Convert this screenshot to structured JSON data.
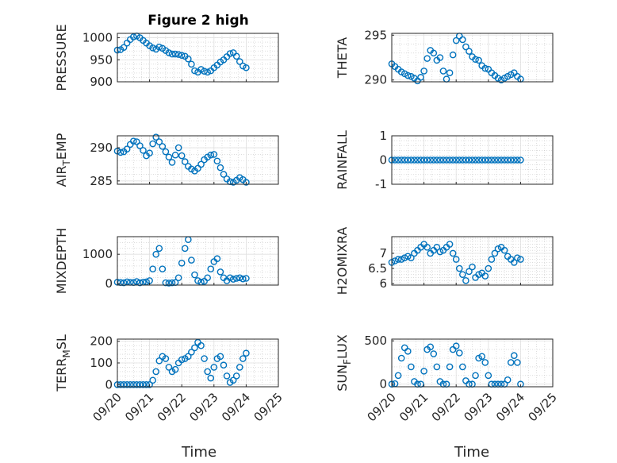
{
  "figure_title": "Figure 2 high",
  "x_axis_label": "Time",
  "x_tick_labels": [
    "09/20",
    "09/21",
    "09/22",
    "09/23",
    "09/24",
    "09/25"
  ],
  "colors": {
    "marker": "#0072BD",
    "axis": "#262626",
    "grid": "#e0e0e0",
    "minor_grid": "#c8c8c8"
  },
  "chart_data": [
    {
      "type": "scatter",
      "ylabel": "PRESSURE",
      "ylabel_sub": "",
      "ylabel_suffix": "",
      "x": [
        0,
        0.1,
        0.2,
        0.3,
        0.4,
        0.5,
        0.6,
        0.7,
        0.8,
        0.9,
        1.0,
        1.1,
        1.2,
        1.3,
        1.4,
        1.5,
        1.6,
        1.7,
        1.8,
        1.9,
        2.0,
        2.1,
        2.2,
        2.3,
        2.4,
        2.5,
        2.6,
        2.7,
        2.8,
        2.9,
        3.0,
        3.1,
        3.2,
        3.3,
        3.4,
        3.5,
        3.6,
        3.7,
        3.8,
        3.9,
        4.0
      ],
      "y": [
        972,
        973,
        978,
        988,
        996,
        1002,
        1004,
        1000,
        994,
        988,
        982,
        977,
        974,
        979,
        976,
        971,
        966,
        963,
        963,
        962,
        960,
        958,
        952,
        940,
        925,
        922,
        928,
        924,
        922,
        925,
        932,
        938,
        945,
        950,
        957,
        964,
        966,
        958,
        946,
        936,
        932
      ],
      "ylim": [
        900,
        1010
      ],
      "yticks": [
        900,
        950,
        1000
      ],
      "yticklabels": [
        "900",
        "950",
        "1000"
      ]
    },
    {
      "type": "scatter",
      "ylabel": "THETA",
      "ylabel_sub": "",
      "ylabel_suffix": "",
      "x": [
        0,
        0.1,
        0.2,
        0.3,
        0.4,
        0.5,
        0.6,
        0.7,
        0.8,
        0.9,
        1.0,
        1.1,
        1.2,
        1.3,
        1.4,
        1.5,
        1.6,
        1.7,
        1.8,
        1.9,
        2.0,
        2.1,
        2.2,
        2.3,
        2.4,
        2.5,
        2.6,
        2.7,
        2.8,
        2.9,
        3.0,
        3.1,
        3.2,
        3.3,
        3.4,
        3.5,
        3.6,
        3.7,
        3.8,
        3.9,
        4.0
      ],
      "y": [
        291.8,
        291.5,
        291.2,
        290.9,
        290.7,
        290.5,
        290.4,
        290.2,
        289.9,
        290.3,
        291.0,
        292.4,
        293.3,
        293.0,
        292.2,
        292.5,
        291.0,
        290.1,
        290.8,
        292.8,
        294.4,
        294.9,
        294.5,
        293.7,
        293.2,
        292.6,
        292.3,
        292.2,
        291.6,
        291.3,
        291.2,
        290.8,
        290.5,
        290.2,
        290.0,
        290.2,
        290.4,
        290.6,
        290.8,
        290.4,
        290.1
      ],
      "ylim": [
        289.8,
        295.2
      ],
      "yticks": [
        290,
        295
      ],
      "yticklabels": [
        "290",
        "295"
      ]
    },
    {
      "type": "scatter",
      "ylabel": "AIR",
      "ylabel_sub": "T",
      "ylabel_suffix": "EMP",
      "x": [
        0,
        0.1,
        0.2,
        0.3,
        0.4,
        0.5,
        0.6,
        0.7,
        0.8,
        0.9,
        1.0,
        1.1,
        1.2,
        1.3,
        1.4,
        1.5,
        1.6,
        1.7,
        1.8,
        1.9,
        2.0,
        2.1,
        2.2,
        2.3,
        2.4,
        2.5,
        2.6,
        2.7,
        2.8,
        2.9,
        3.0,
        3.1,
        3.2,
        3.3,
        3.4,
        3.5,
        3.6,
        3.7,
        3.8,
        3.9,
        4.0
      ],
      "y": [
        289.5,
        289.3,
        289.4,
        289.8,
        290.5,
        291.0,
        290.9,
        290.3,
        289.6,
        288.8,
        289.2,
        290.6,
        291.6,
        290.9,
        290.2,
        289.4,
        288.6,
        287.8,
        288.9,
        290.0,
        288.8,
        287.9,
        287.2,
        286.8,
        286.5,
        286.9,
        287.5,
        288.2,
        288.6,
        288.9,
        289.0,
        288.0,
        287.0,
        286.0,
        285.3,
        284.9,
        284.8,
        285.1,
        285.5,
        285.2,
        284.8
      ],
      "ylim": [
        284.5,
        291.8
      ],
      "yticks": [
        285,
        290
      ],
      "yticklabels": [
        "285",
        "290"
      ]
    },
    {
      "type": "scatter",
      "ylabel": "RAINFALL",
      "ylabel_sub": "",
      "ylabel_suffix": "",
      "x": [
        0,
        0.1,
        0.2,
        0.3,
        0.4,
        0.5,
        0.6,
        0.7,
        0.8,
        0.9,
        1.0,
        1.1,
        1.2,
        1.3,
        1.4,
        1.5,
        1.6,
        1.7,
        1.8,
        1.9,
        2.0,
        2.1,
        2.2,
        2.3,
        2.4,
        2.5,
        2.6,
        2.7,
        2.8,
        2.9,
        3.0,
        3.1,
        3.2,
        3.3,
        3.4,
        3.5,
        3.6,
        3.7,
        3.8,
        3.9,
        4.0
      ],
      "y": [
        0,
        0,
        0,
        0,
        0,
        0,
        0,
        0,
        0,
        0,
        0,
        0,
        0,
        0,
        0,
        0,
        0,
        0,
        0,
        0,
        0,
        0,
        0,
        0,
        0,
        0,
        0,
        0,
        0,
        0,
        0,
        0,
        0,
        0,
        0,
        0,
        0,
        0,
        0,
        0,
        0
      ],
      "ylim": [
        -1,
        1
      ],
      "yticks": [
        -1,
        0,
        1
      ],
      "yticklabels": [
        "-1",
        "0",
        "1"
      ]
    },
    {
      "type": "scatter",
      "ylabel": "MIXDEPTH",
      "ylabel_sub": "",
      "ylabel_suffix": "",
      "x": [
        0,
        0.1,
        0.2,
        0.3,
        0.4,
        0.5,
        0.6,
        0.7,
        0.8,
        0.9,
        1.0,
        1.1,
        1.2,
        1.3,
        1.4,
        1.5,
        1.6,
        1.7,
        1.8,
        1.9,
        2.0,
        2.1,
        2.2,
        2.3,
        2.4,
        2.5,
        2.6,
        2.7,
        2.8,
        2.9,
        3.0,
        3.1,
        3.2,
        3.3,
        3.4,
        3.5,
        3.6,
        3.7,
        3.8,
        3.9,
        4.0
      ],
      "y": [
        50,
        40,
        30,
        60,
        45,
        40,
        70,
        30,
        50,
        60,
        100,
        500,
        1000,
        1200,
        500,
        30,
        20,
        30,
        40,
        200,
        700,
        1200,
        1500,
        800,
        300,
        100,
        50,
        80,
        200,
        500,
        750,
        850,
        400,
        200,
        100,
        200,
        150,
        180,
        200,
        160,
        180
      ],
      "ylim": [
        -50,
        1600
      ],
      "yticks": [
        0,
        1000
      ],
      "yticklabels": [
        "0",
        "1000"
      ]
    },
    {
      "type": "scatter",
      "ylabel": "H2OMIXRA",
      "ylabel_sub": "",
      "ylabel_suffix": "",
      "x": [
        0,
        0.1,
        0.2,
        0.3,
        0.4,
        0.5,
        0.6,
        0.7,
        0.8,
        0.9,
        1.0,
        1.1,
        1.2,
        1.3,
        1.4,
        1.5,
        1.6,
        1.7,
        1.8,
        1.9,
        2.0,
        2.1,
        2.2,
        2.3,
        2.4,
        2.5,
        2.6,
        2.7,
        2.8,
        2.9,
        3.0,
        3.1,
        3.2,
        3.3,
        3.4,
        3.5,
        3.6,
        3.7,
        3.8,
        3.9,
        4.0
      ],
      "y": [
        6.7,
        6.75,
        6.8,
        6.8,
        6.85,
        6.9,
        6.85,
        7.0,
        7.1,
        7.2,
        7.3,
        7.2,
        7.0,
        7.1,
        7.2,
        7.05,
        7.1,
        7.2,
        7.3,
        7.0,
        6.8,
        6.5,
        6.3,
        6.1,
        6.4,
        6.55,
        6.2,
        6.3,
        6.35,
        6.25,
        6.5,
        6.8,
        7.0,
        7.15,
        7.2,
        7.1,
        6.9,
        6.8,
        6.7,
        6.85,
        6.8
      ],
      "ylim": [
        5.95,
        7.55
      ],
      "yticks": [
        6,
        6.5,
        7
      ],
      "yticklabels": [
        "6",
        "6.5",
        "7"
      ]
    },
    {
      "type": "scatter",
      "ylabel": "TERR",
      "ylabel_sub": "M",
      "ylabel_suffix": "SL",
      "x": [
        0,
        0.1,
        0.2,
        0.3,
        0.4,
        0.5,
        0.6,
        0.7,
        0.8,
        0.9,
        1.0,
        1.1,
        1.2,
        1.3,
        1.4,
        1.5,
        1.6,
        1.7,
        1.8,
        1.9,
        2.0,
        2.1,
        2.2,
        2.3,
        2.4,
        2.5,
        2.6,
        2.7,
        2.8,
        2.9,
        3.0,
        3.1,
        3.2,
        3.3,
        3.4,
        3.5,
        3.6,
        3.7,
        3.8,
        3.9,
        4.0
      ],
      "y": [
        0,
        0,
        0,
        0,
        0,
        0,
        0,
        0,
        0,
        0,
        0,
        20,
        60,
        110,
        130,
        120,
        80,
        60,
        70,
        100,
        115,
        120,
        130,
        150,
        170,
        195,
        180,
        120,
        60,
        30,
        80,
        120,
        130,
        90,
        40,
        10,
        20,
        40,
        80,
        120,
        145
      ],
      "ylim": [
        -10,
        210
      ],
      "yticks": [
        0,
        100,
        200
      ],
      "yticklabels": [
        "0",
        "100",
        "200"
      ]
    },
    {
      "type": "scatter",
      "ylabel": "SUN",
      "ylabel_sub": "F",
      "ylabel_suffix": "LUX",
      "x": [
        0,
        0.1,
        0.2,
        0.3,
        0.4,
        0.5,
        0.6,
        0.7,
        0.8,
        0.9,
        1.0,
        1.1,
        1.2,
        1.3,
        1.4,
        1.5,
        1.6,
        1.7,
        1.8,
        1.9,
        2.0,
        2.1,
        2.2,
        2.3,
        2.4,
        2.5,
        2.6,
        2.7,
        2.8,
        2.9,
        3.0,
        3.1,
        3.2,
        3.3,
        3.4,
        3.5,
        3.6,
        3.7,
        3.8,
        3.9,
        4.0
      ],
      "y": [
        0,
        5,
        100,
        300,
        420,
        380,
        200,
        30,
        0,
        0,
        150,
        400,
        430,
        350,
        200,
        30,
        0,
        0,
        200,
        400,
        440,
        360,
        200,
        40,
        0,
        0,
        100,
        300,
        320,
        250,
        100,
        0,
        0,
        0,
        0,
        0,
        50,
        250,
        330,
        250,
        0
      ],
      "ylim": [
        -30,
        520
      ],
      "yticks": [
        0,
        500
      ],
      "yticklabels": [
        "0",
        "500"
      ]
    }
  ]
}
